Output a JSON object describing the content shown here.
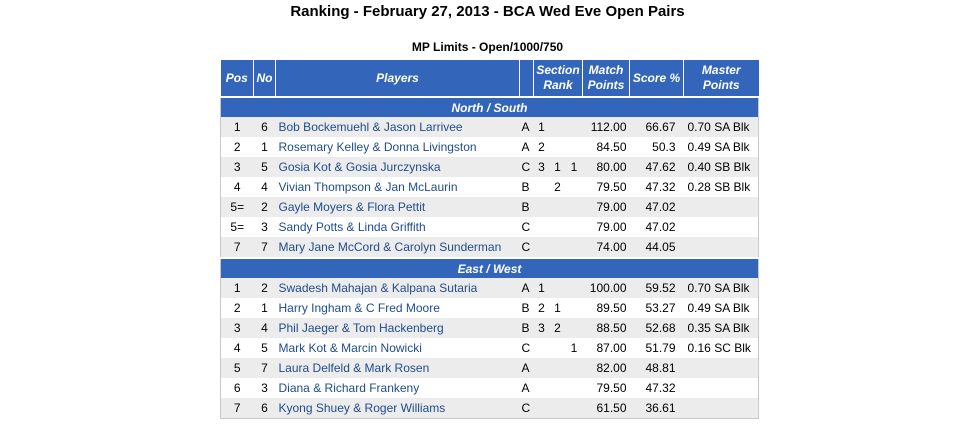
{
  "title": "Ranking - February 27, 2013 - BCA Wed Eve Open Pairs",
  "subtitle": "MP Limits - Open/1000/750",
  "headers": {
    "pos": "Pos",
    "no": "No",
    "players": "Players",
    "section_rank_1": "Section",
    "section_rank_2": "Rank",
    "match_points_1": "Match",
    "match_points_2": "Points",
    "score": "Score %",
    "master_points_1": "Master",
    "master_points_2": "Points"
  },
  "sections": [
    {
      "name": "North / South",
      "rows": [
        {
          "pos": "1",
          "no": "6",
          "players": "Bob Bockemuehl & Jason Larrivee",
          "dir": "A",
          "r1": "1",
          "r2": "",
          "r3": "",
          "mp": "112.00",
          "score": "66.67",
          "master": "0.70 SA Blk"
        },
        {
          "pos": "2",
          "no": "1",
          "players": "Rosemary Kelley & Donna Livingston",
          "dir": "A",
          "r1": "2",
          "r2": "",
          "r3": "",
          "mp": "84.50",
          "score": "50.3",
          "master": "0.49 SA Blk"
        },
        {
          "pos": "3",
          "no": "5",
          "players": "Gosia Kot & Gosia Jurczynska",
          "dir": "C",
          "r1": "3",
          "r2": "1",
          "r3": "1",
          "mp": "80.00",
          "score": "47.62",
          "master": "0.40 SB Blk"
        },
        {
          "pos": "4",
          "no": "4",
          "players": "Vivian Thompson & Jan McLaurin",
          "dir": "B",
          "r1": "",
          "r2": "2",
          "r3": "",
          "mp": "79.50",
          "score": "47.32",
          "master": "0.28 SB Blk"
        },
        {
          "pos": "5=",
          "no": "2",
          "players": "Gayle Moyers & Flora Pettit",
          "dir": "B",
          "r1": "",
          "r2": "",
          "r3": "",
          "mp": "79.00",
          "score": "47.02",
          "master": ""
        },
        {
          "pos": "5=",
          "no": "3",
          "players": "Sandy Potts & Linda Griffith",
          "dir": "C",
          "r1": "",
          "r2": "",
          "r3": "",
          "mp": "79.00",
          "score": "47.02",
          "master": ""
        },
        {
          "pos": "7",
          "no": "7",
          "players": "Mary Jane McCord & Carolyn Sunderman",
          "dir": "C",
          "r1": "",
          "r2": "",
          "r3": "",
          "mp": "74.00",
          "score": "44.05",
          "master": ""
        }
      ]
    },
    {
      "name": "East / West",
      "rows": [
        {
          "pos": "1",
          "no": "2",
          "players": "Swadesh Mahajan & Kalpana Sutaria",
          "dir": "A",
          "r1": "1",
          "r2": "",
          "r3": "",
          "mp": "100.00",
          "score": "59.52",
          "master": "0.70 SA Blk"
        },
        {
          "pos": "2",
          "no": "1",
          "players": "Harry Ingham & C Fred Moore",
          "dir": "B",
          "r1": "2",
          "r2": "1",
          "r3": "",
          "mp": "89.50",
          "score": "53.27",
          "master": "0.49 SA Blk"
        },
        {
          "pos": "3",
          "no": "4",
          "players": "Phil Jaeger & Tom Hackenberg",
          "dir": "B",
          "r1": "3",
          "r2": "2",
          "r3": "",
          "mp": "88.50",
          "score": "52.68",
          "master": "0.35 SA Blk"
        },
        {
          "pos": "4",
          "no": "5",
          "players": "Mark Kot & Marcin Nowicki",
          "dir": "C",
          "r1": "",
          "r2": "",
          "r3": "1",
          "mp": "87.00",
          "score": "51.79",
          "master": "0.16 SC Blk"
        },
        {
          "pos": "5",
          "no": "7",
          "players": "Laura Delfeld & Mark Rosen",
          "dir": "A",
          "r1": "",
          "r2": "",
          "r3": "",
          "mp": "82.00",
          "score": "48.81",
          "master": ""
        },
        {
          "pos": "6",
          "no": "3",
          "players": "Diana & Richard Frankeny",
          "dir": "A",
          "r1": "",
          "r2": "",
          "r3": "",
          "mp": "79.50",
          "score": "47.32",
          "master": ""
        },
        {
          "pos": "7",
          "no": "6",
          "players": "Kyong Shuey & Roger Williams",
          "dir": "C",
          "r1": "",
          "r2": "",
          "r3": "",
          "mp": "61.50",
          "score": "36.61",
          "master": ""
        }
      ]
    }
  ]
}
